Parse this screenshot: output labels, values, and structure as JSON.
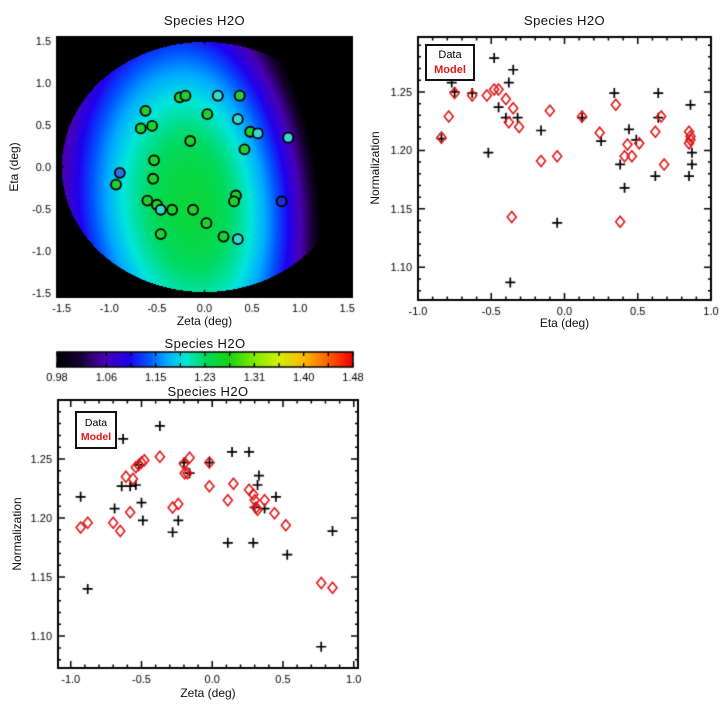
{
  "figure_bg": "#ffffff",
  "colors": {
    "data_series": "#000000",
    "model_series": "#e01818",
    "axis": "#000000",
    "map_marker_palette": {
      "green": "#1fd232",
      "cyan": "#36d8d2",
      "blue": "#2f6fe0",
      "navy": "#1f2fcf"
    }
  },
  "chart_data": [
    {
      "id": "map",
      "type": "heatmap",
      "title": "Species H2O",
      "xlabel": "Zeta (deg)",
      "ylabel": "Eta (deg)",
      "xlim": [
        -1.55,
        1.55
      ],
      "ylim": [
        -1.55,
        1.55
      ],
      "xtick_values": [
        -1.5,
        -1.0,
        -0.5,
        0.0,
        0.5,
        1.0,
        1.5
      ],
      "xtick_labels": [
        "-1.5",
        "-1.0",
        "-0.5",
        "0.0",
        "0.5",
        "1.0",
        "1.5"
      ],
      "ytick_values": [
        -1.5,
        -1.0,
        -0.5,
        0.0,
        0.5,
        1.0,
        1.5
      ],
      "ytick_labels": [
        "-1.5",
        "-1.0",
        "-0.5",
        "0.0",
        "0.5",
        "1.0",
        "1.5"
      ],
      "minor_step": 0.1,
      "value_range": [
        0.98,
        1.48
      ],
      "field_model": {
        "peak": 1.25,
        "z0": -0.15,
        "e0": -0.45,
        "shear": 0.06,
        "k_left": 0.105,
        "k_right": 0.15,
        "k_eta": 0.035,
        "ellipse_rx": 1.5,
        "ellipse_ry": 1.49,
        "outside_color": "#000000"
      },
      "colormap_stops": [
        [
          0.0,
          "#000000"
        ],
        [
          0.07,
          "#16002e"
        ],
        [
          0.16,
          "#4a00b4"
        ],
        [
          0.24,
          "#2000ee"
        ],
        [
          0.31,
          "#0055ff"
        ],
        [
          0.37,
          "#00aaff"
        ],
        [
          0.43,
          "#00e6da"
        ],
        [
          0.5,
          "#00da5f"
        ],
        [
          0.58,
          "#16d216"
        ],
        [
          0.66,
          "#7ce800"
        ],
        [
          0.75,
          "#d4f000"
        ],
        [
          0.84,
          "#ffb400"
        ],
        [
          0.92,
          "#ff5c00"
        ],
        [
          1.0,
          "#f00000"
        ]
      ],
      "markers": [
        {
          "x": -0.26,
          "y": 0.83,
          "c": "green"
        },
        {
          "x": -0.2,
          "y": 0.85,
          "c": "green"
        },
        {
          "x": 0.14,
          "y": 0.85,
          "c": "cyan"
        },
        {
          "x": 0.37,
          "y": 0.85,
          "c": "green"
        },
        {
          "x": -0.62,
          "y": 0.67,
          "c": "green"
        },
        {
          "x": 0.03,
          "y": 0.63,
          "c": "green"
        },
        {
          "x": 0.35,
          "y": 0.57,
          "c": "cyan"
        },
        {
          "x": -0.67,
          "y": 0.46,
          "c": "green"
        },
        {
          "x": -0.55,
          "y": 0.49,
          "c": "green"
        },
        {
          "x": 0.48,
          "y": 0.42,
          "c": "green"
        },
        {
          "x": 0.56,
          "y": 0.4,
          "c": "cyan"
        },
        {
          "x": 0.88,
          "y": 0.35,
          "c": "cyan"
        },
        {
          "x": -0.15,
          "y": 0.31,
          "c": "green"
        },
        {
          "x": 0.42,
          "y": 0.21,
          "c": "green"
        },
        {
          "x": -0.53,
          "y": 0.08,
          "c": "green"
        },
        {
          "x": -0.89,
          "y": -0.07,
          "c": "blue"
        },
        {
          "x": -0.54,
          "y": -0.14,
          "c": "green"
        },
        {
          "x": -0.93,
          "y": -0.21,
          "c": "green"
        },
        {
          "x": 0.33,
          "y": -0.34,
          "c": "green"
        },
        {
          "x": 0.31,
          "y": -0.41,
          "c": "green"
        },
        {
          "x": -0.6,
          "y": -0.4,
          "c": "green"
        },
        {
          "x": 0.81,
          "y": -0.41,
          "c": "navy"
        },
        {
          "x": -0.5,
          "y": -0.45,
          "c": "green"
        },
        {
          "x": -0.46,
          "y": -0.51,
          "c": "cyan"
        },
        {
          "x": -0.34,
          "y": -0.51,
          "c": "green"
        },
        {
          "x": -0.12,
          "y": -0.51,
          "c": "green"
        },
        {
          "x": 0.02,
          "y": -0.67,
          "c": "green"
        },
        {
          "x": -0.46,
          "y": -0.8,
          "c": "green"
        },
        {
          "x": 0.2,
          "y": -0.83,
          "c": "green"
        },
        {
          "x": 0.35,
          "y": -0.86,
          "c": "cyan"
        }
      ]
    },
    {
      "id": "eta_plot",
      "type": "scatter",
      "title": "Species H2O",
      "xlabel": "Eta (deg)",
      "ylabel": "Normalization",
      "xlim": [
        -1.0,
        1.0
      ],
      "ylim": [
        1.072,
        1.297
      ],
      "xtick_values": [
        -1.0,
        -0.5,
        0.0,
        0.5,
        1.0
      ],
      "xtick_labels": [
        "-1.0",
        "-0.5",
        "0.0",
        "0.5",
        "1.0"
      ],
      "ytick_values": [
        1.1,
        1.15,
        1.2,
        1.25
      ],
      "ytick_labels": [
        "1.10",
        "1.15",
        "1.20",
        "1.25"
      ],
      "x_minor_step": 0.1,
      "y_minor_step": 0.01,
      "series": [
        {
          "name": "Data",
          "marker": "plus",
          "color": "#000000",
          "points": [
            [
              -0.84,
              1.21
            ],
            [
              -0.77,
              1.258
            ],
            [
              -0.75,
              1.25
            ],
            [
              -0.63,
              1.249
            ],
            [
              -0.52,
              1.198
            ],
            [
              -0.48,
              1.279
            ],
            [
              -0.45,
              1.237
            ],
            [
              -0.4,
              1.228
            ],
            [
              -0.38,
              1.258
            ],
            [
              -0.35,
              1.269
            ],
            [
              -0.32,
              1.228
            ],
            [
              -0.37,
              1.087
            ],
            [
              -0.16,
              1.217
            ],
            [
              -0.05,
              1.138
            ],
            [
              0.12,
              1.228
            ],
            [
              0.25,
              1.208
            ],
            [
              0.34,
              1.249
            ],
            [
              0.38,
              1.188
            ],
            [
              0.41,
              1.168
            ],
            [
              0.44,
              1.218
            ],
            [
              0.49,
              1.209
            ],
            [
              0.62,
              1.178
            ],
            [
              0.64,
              1.249
            ],
            [
              0.64,
              1.228
            ],
            [
              0.85,
              1.178
            ],
            [
              0.86,
              1.239
            ],
            [
              0.87,
              1.198
            ],
            [
              0.87,
              1.188
            ]
          ]
        },
        {
          "name": "Model",
          "marker": "diamond",
          "color": "#e01818",
          "points": [
            [
              -0.84,
              1.211
            ],
            [
              -0.79,
              1.229
            ],
            [
              -0.75,
              1.249
            ],
            [
              -0.63,
              1.247
            ],
            [
              -0.53,
              1.247
            ],
            [
              -0.48,
              1.252
            ],
            [
              -0.45,
              1.252
            ],
            [
              -0.4,
              1.244
            ],
            [
              -0.35,
              1.236
            ],
            [
              -0.38,
              1.224
            ],
            [
              -0.31,
              1.22
            ],
            [
              -0.36,
              1.143
            ],
            [
              -0.16,
              1.191
            ],
            [
              -0.1,
              1.234
            ],
            [
              -0.05,
              1.195
            ],
            [
              0.12,
              1.229
            ],
            [
              0.24,
              1.215
            ],
            [
              0.35,
              1.239
            ],
            [
              0.38,
              1.139
            ],
            [
              0.41,
              1.195
            ],
            [
              0.46,
              1.195
            ],
            [
              0.43,
              1.205
            ],
            [
              0.51,
              1.206
            ],
            [
              0.62,
              1.216
            ],
            [
              0.66,
              1.229
            ],
            [
              0.68,
              1.188
            ],
            [
              0.85,
              1.216
            ],
            [
              0.86,
              1.212
            ],
            [
              0.86,
              1.209
            ],
            [
              0.85,
              1.206
            ]
          ]
        }
      ]
    },
    {
      "id": "colorbar",
      "type": "colorbar",
      "title": "Species H2O",
      "range": [
        0.98,
        1.48
      ],
      "tick_labels": [
        "0.98",
        "1.06",
        "1.15",
        "1.23",
        "1.31",
        "1.40",
        "1.48"
      ],
      "n_minor_ticks": 12
    },
    {
      "id": "zeta_plot",
      "type": "scatter",
      "title": "Species H2O",
      "xlabel": "Zeta (deg)",
      "ylabel": "Normalization",
      "xlim": [
        -1.09,
        1.03
      ],
      "ylim": [
        1.073,
        1.3
      ],
      "xtick_values": [
        -1.0,
        -0.5,
        0.0,
        0.5,
        1.0
      ],
      "xtick_labels": [
        "-1.0",
        "-0.5",
        "0.0",
        "0.5",
        "1.0"
      ],
      "ytick_values": [
        1.1,
        1.15,
        1.2,
        1.25
      ],
      "ytick_labels": [
        "1.10",
        "1.15",
        "1.20",
        "1.25"
      ],
      "x_minor_step": 0.1,
      "y_minor_step": 0.01,
      "series": [
        {
          "name": "Data",
          "marker": "plus",
          "color": "#000000",
          "points": [
            [
              -0.93,
              1.218
            ],
            [
              -0.88,
              1.14
            ],
            [
              -0.69,
              1.208
            ],
            [
              -0.63,
              1.267
            ],
            [
              -0.64,
              1.227
            ],
            [
              -0.58,
              1.227
            ],
            [
              -0.54,
              1.228
            ],
            [
              -0.52,
              1.245
            ],
            [
              -0.5,
              1.213
            ],
            [
              -0.49,
              1.198
            ],
            [
              -0.37,
              1.278
            ],
            [
              -0.28,
              1.188
            ],
            [
              -0.24,
              1.198
            ],
            [
              -0.2,
              1.247
            ],
            [
              -0.16,
              1.238
            ],
            [
              -0.02,
              1.247
            ],
            [
              0.11,
              1.179
            ],
            [
              0.14,
              1.256
            ],
            [
              0.26,
              1.256
            ],
            [
              0.29,
              1.179
            ],
            [
              0.33,
              1.236
            ],
            [
              0.32,
              1.228
            ],
            [
              0.3,
              1.209
            ],
            [
              0.37,
              1.208
            ],
            [
              0.45,
              1.218
            ],
            [
              0.53,
              1.169
            ],
            [
              0.77,
              1.091
            ],
            [
              0.85,
              1.189
            ]
          ]
        },
        {
          "name": "Model",
          "marker": "diamond",
          "color": "#e01818",
          "points": [
            [
              -0.93,
              1.192
            ],
            [
              -0.88,
              1.196
            ],
            [
              -0.7,
              1.196
            ],
            [
              -0.65,
              1.189
            ],
            [
              -0.61,
              1.235
            ],
            [
              -0.56,
              1.233
            ],
            [
              -0.58,
              1.205
            ],
            [
              -0.54,
              1.243
            ],
            [
              -0.52,
              1.245
            ],
            [
              -0.5,
              1.247
            ],
            [
              -0.48,
              1.249
            ],
            [
              -0.37,
              1.252
            ],
            [
              -0.28,
              1.209
            ],
            [
              -0.24,
              1.212
            ],
            [
              -0.2,
              1.246
            ],
            [
              -0.16,
              1.251
            ],
            [
              -0.195,
              1.238
            ],
            [
              -0.175,
              1.238
            ],
            [
              -0.02,
              1.247
            ],
            [
              -0.02,
              1.227
            ],
            [
              0.11,
              1.215
            ],
            [
              0.15,
              1.229
            ],
            [
              0.26,
              1.224
            ],
            [
              0.29,
              1.22
            ],
            [
              0.3,
              1.215
            ],
            [
              0.31,
              1.209
            ],
            [
              0.32,
              1.207
            ],
            [
              0.37,
              1.215
            ],
            [
              0.44,
              1.204
            ],
            [
              0.52,
              1.194
            ],
            [
              0.77,
              1.145
            ],
            [
              0.85,
              1.141
            ]
          ]
        }
      ]
    }
  ]
}
